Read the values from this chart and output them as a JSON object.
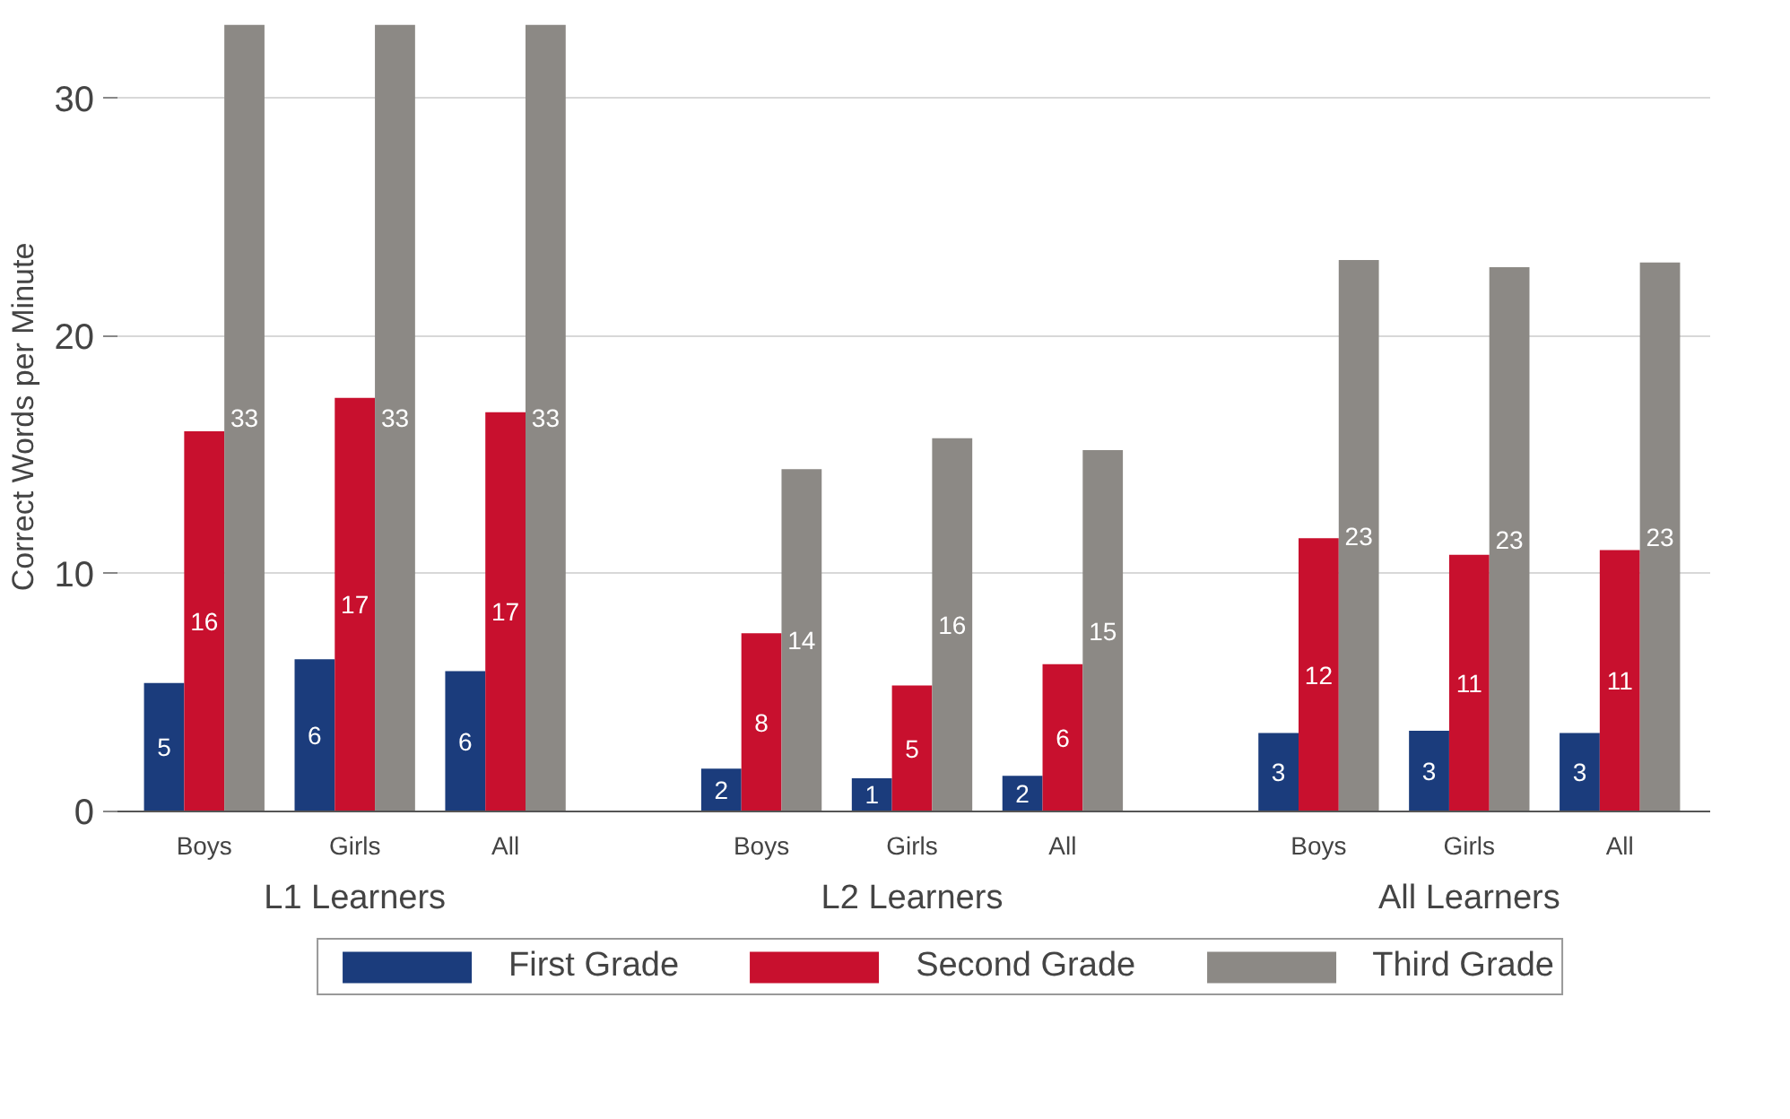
{
  "chart_data": {
    "type": "bar",
    "ylabel": "Correct Words per Minute",
    "categories": [
      "Boys",
      "Girls",
      "All",
      "Boys",
      "Girls",
      "All",
      "Boys",
      "Girls",
      "All"
    ],
    "annotations": [
      "L1 Learners",
      "L2 Learners",
      "All Learners"
    ],
    "series": [
      {
        "name": "First Grade",
        "color": "#1b3c7c",
        "values": [
          5.4,
          6.4,
          5.9,
          1.8,
          1.4,
          1.5,
          3.3,
          3.4,
          3.3
        ],
        "value_labels": [
          "5",
          "6",
          "6",
          "2",
          "1",
          "2",
          "3",
          "3",
          "3"
        ]
      },
      {
        "name": "Second Grade",
        "color": "#c8102e",
        "values": [
          16.0,
          17.4,
          16.8,
          7.5,
          5.3,
          6.2,
          11.5,
          10.8,
          11.0
        ],
        "value_labels": [
          "16",
          "17",
          "17",
          "8",
          "5",
          "6",
          "12",
          "11",
          "11"
        ]
      },
      {
        "name": "Third Grade",
        "color": "#8c8985",
        "values": [
          33.1,
          33.1,
          33.1,
          14.4,
          15.7,
          15.2,
          23.2,
          22.9,
          23.1
        ],
        "value_labels": [
          "33",
          "33",
          "33",
          "14",
          "16",
          "15",
          "23",
          "23",
          "23"
        ]
      }
    ],
    "ylim": [
      0,
      33.2
    ],
    "yticks": [
      0,
      10,
      20,
      30
    ],
    "grid": "y",
    "legend": "bottom"
  }
}
